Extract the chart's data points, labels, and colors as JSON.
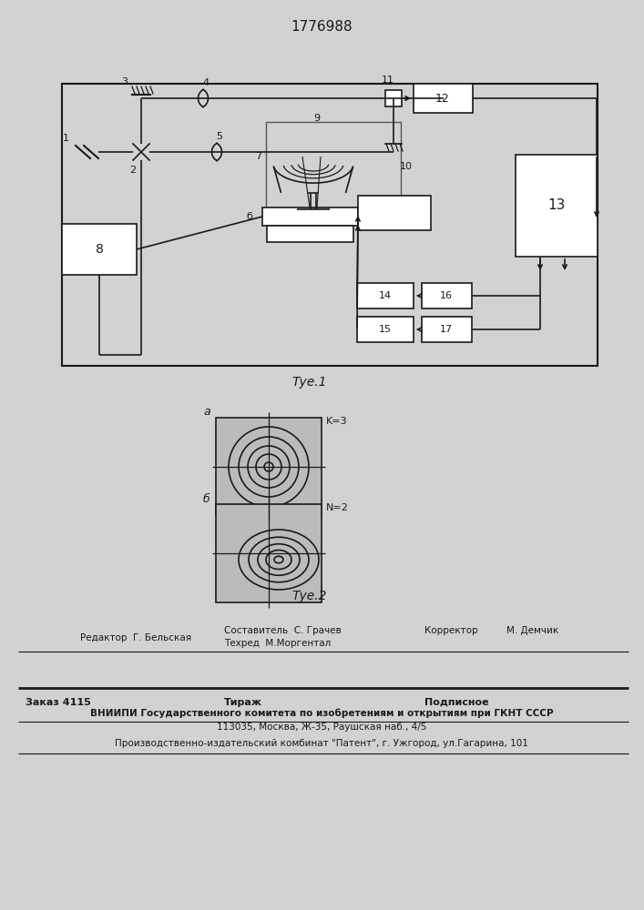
{
  "patent_number": "1776988",
  "fig1_caption": "Τуе.1",
  "fig2_caption": "Τуе.2",
  "fig2a_label": "a",
  "fig2b_label": "б",
  "fig2a_annotation": "K=3",
  "fig2b_annotation": "N=2",
  "lc": "#1a1a1a",
  "footer_line1_left": "Редактор  Г. Бельская",
  "footer_line1_mid1": "Составитель  С. Грачев",
  "footer_line1_mid2": "Техред  М.Моргентал",
  "footer_line1_right1": "Корректор",
  "footer_line1_right2": "М. Демчик",
  "footer_line2_col1": "Заказ 4115",
  "footer_line2_col2": "Тираж",
  "footer_line2_col3": "Подписное",
  "footer_line3": "ВНИИПИ Государственного комитета по изобретениям и открытиям при ГКНТ СССР",
  "footer_line4": "113035, Москва, Ж-35, Раушская наб., 4/5",
  "footer_line5": "Производственно-издательский комбинат \"Патент\", г. Ужгород, ул.Гагарина, 101"
}
